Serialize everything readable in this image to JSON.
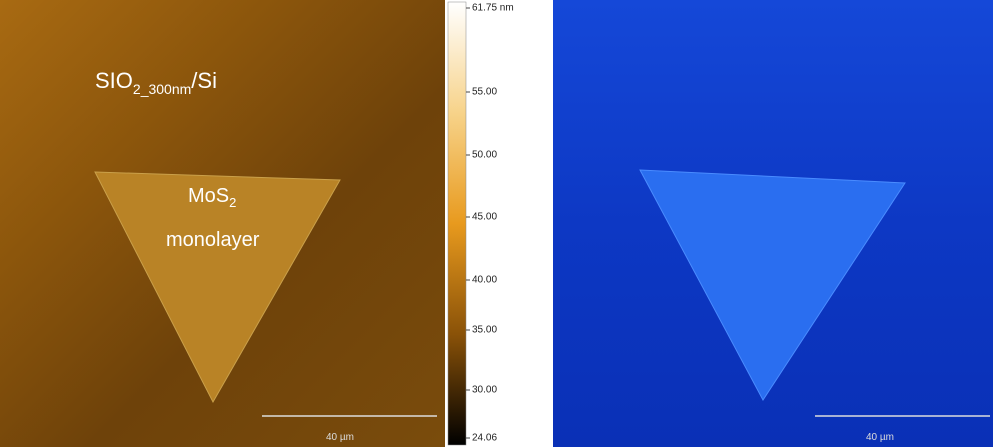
{
  "left_panel": {
    "substrate_label": {
      "main": "SIO",
      "sub": "2",
      "suffix": "_300nm",
      "tail": "/Si"
    },
    "flake_label": {
      "main": "MoS",
      "sub": "2",
      "line2": "monolayer"
    },
    "scale_bar_label": "40 µm"
  },
  "colorbar": {
    "labels": [
      "61.75 nm",
      "55.00",
      "50.00",
      "45.00",
      "40.00",
      "35.00",
      "30.00",
      "24.06"
    ]
  },
  "right_panel": {
    "scale_bar_label": "40 µm"
  }
}
